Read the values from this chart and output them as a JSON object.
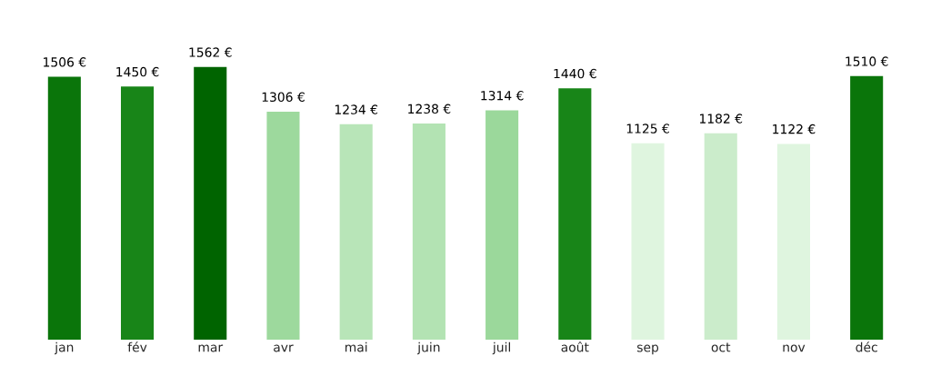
{
  "chart_data": {
    "type": "bar",
    "categories": [
      "jan",
      "fév",
      "mar",
      "avr",
      "mai",
      "juin",
      "juil",
      "août",
      "sep",
      "oct",
      "nov",
      "déc"
    ],
    "values": [
      1506,
      1450,
      1562,
      1306,
      1234,
      1238,
      1314,
      1440,
      1125,
      1182,
      1122,
      1510
    ],
    "value_labels": [
      "1506 €",
      "1450 €",
      "1562 €",
      "1306 €",
      "1234 €",
      "1238 €",
      "1314 €",
      "1440 €",
      "1125 €",
      "1182 €",
      "1122 €",
      "1510 €"
    ],
    "colors": [
      "#0a750a",
      "#188518",
      "#006400",
      "#9dd99d",
      "#b8e5b8",
      "#b3e3b3",
      "#9bd89b",
      "#188518",
      "#dff5df",
      "#cbeccb",
      "#dff5df",
      "#0a750a"
    ],
    "tick_labels": "x",
    "grid": false,
    "legend": false
  }
}
